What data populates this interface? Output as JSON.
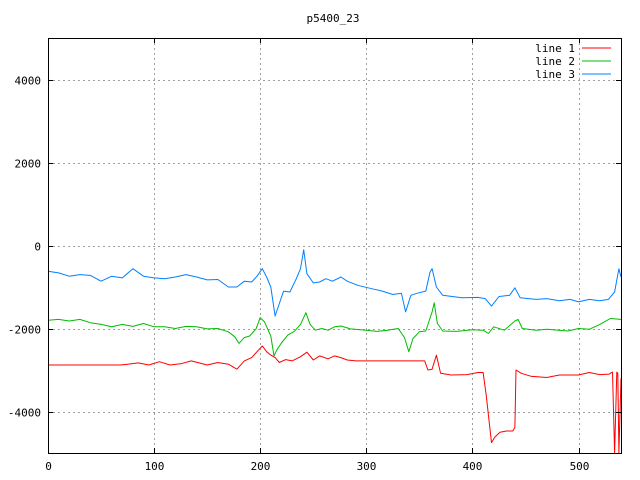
{
  "chart_data": {
    "type": "line",
    "title": "p5400_23",
    "xlabel": "",
    "ylabel": "",
    "xlim": [
      0,
      540
    ],
    "ylim": [
      -5000,
      5000
    ],
    "x_ticks": [
      0,
      100,
      200,
      300,
      400,
      500
    ],
    "y_ticks": [
      -4000,
      -2000,
      0,
      2000,
      4000
    ],
    "grid": true,
    "legend_position": "top-right",
    "series": [
      {
        "name": "line 1",
        "color": "#ff0000",
        "points": [
          [
            0,
            -2880
          ],
          [
            68,
            -2880
          ],
          [
            75,
            -2860
          ],
          [
            85,
            -2830
          ],
          [
            95,
            -2880
          ],
          [
            105,
            -2800
          ],
          [
            115,
            -2880
          ],
          [
            125,
            -2850
          ],
          [
            135,
            -2780
          ],
          [
            150,
            -2880
          ],
          [
            160,
            -2820
          ],
          [
            170,
            -2860
          ],
          [
            178,
            -2980
          ],
          [
            185,
            -2780
          ],
          [
            192,
            -2700
          ],
          [
            197,
            -2560
          ],
          [
            202,
            -2420
          ],
          [
            206,
            -2560
          ],
          [
            210,
            -2640
          ],
          [
            214,
            -2700
          ],
          [
            218,
            -2820
          ],
          [
            224,
            -2750
          ],
          [
            230,
            -2780
          ],
          [
            238,
            -2680
          ],
          [
            244,
            -2570
          ],
          [
            250,
            -2760
          ],
          [
            256,
            -2660
          ],
          [
            264,
            -2730
          ],
          [
            270,
            -2660
          ],
          [
            276,
            -2700
          ],
          [
            282,
            -2760
          ],
          [
            290,
            -2780
          ],
          [
            330,
            -2780
          ],
          [
            355,
            -2780
          ],
          [
            358,
            -3000
          ],
          [
            362,
            -2980
          ],
          [
            366,
            -2640
          ],
          [
            370,
            -3080
          ],
          [
            380,
            -3120
          ],
          [
            395,
            -3110
          ],
          [
            405,
            -3060
          ],
          [
            410,
            -3060
          ],
          [
            413,
            -3600
          ],
          [
            416,
            -4300
          ],
          [
            418,
            -4750
          ],
          [
            421,
            -4620
          ],
          [
            426,
            -4500
          ],
          [
            432,
            -4470
          ],
          [
            438,
            -4470
          ],
          [
            440,
            -4380
          ],
          [
            441,
            -3000
          ],
          [
            446,
            -3080
          ],
          [
            455,
            -3150
          ],
          [
            470,
            -3180
          ],
          [
            482,
            -3120
          ],
          [
            500,
            -3120
          ],
          [
            510,
            -3060
          ],
          [
            520,
            -3110
          ],
          [
            529,
            -3100
          ],
          [
            532,
            -3050
          ],
          [
            534,
            -5000
          ],
          [
            536,
            -3050
          ],
          [
            537,
            -3080
          ],
          [
            538,
            -5000
          ],
          [
            540,
            -3200
          ]
        ]
      },
      {
        "name": "line 2",
        "color": "#00bb00",
        "points": [
          [
            0,
            -1800
          ],
          [
            10,
            -1780
          ],
          [
            20,
            -1820
          ],
          [
            30,
            -1780
          ],
          [
            40,
            -1860
          ],
          [
            50,
            -1900
          ],
          [
            60,
            -1960
          ],
          [
            70,
            -1900
          ],
          [
            80,
            -1950
          ],
          [
            90,
            -1880
          ],
          [
            100,
            -1960
          ],
          [
            110,
            -1960
          ],
          [
            120,
            -2000
          ],
          [
            130,
            -1950
          ],
          [
            140,
            -1960
          ],
          [
            150,
            -2010
          ],
          [
            160,
            -2000
          ],
          [
            170,
            -2080
          ],
          [
            176,
            -2200
          ],
          [
            180,
            -2360
          ],
          [
            185,
            -2220
          ],
          [
            190,
            -2180
          ],
          [
            196,
            -2010
          ],
          [
            200,
            -1740
          ],
          [
            204,
            -1840
          ],
          [
            210,
            -2180
          ],
          [
            213,
            -2660
          ],
          [
            216,
            -2500
          ],
          [
            220,
            -2350
          ],
          [
            226,
            -2160
          ],
          [
            232,
            -2070
          ],
          [
            238,
            -1900
          ],
          [
            243,
            -1620
          ],
          [
            247,
            -1900
          ],
          [
            252,
            -2040
          ],
          [
            258,
            -2000
          ],
          [
            264,
            -2040
          ],
          [
            270,
            -1960
          ],
          [
            276,
            -1940
          ],
          [
            285,
            -2010
          ],
          [
            300,
            -2040
          ],
          [
            310,
            -2070
          ],
          [
            320,
            -2040
          ],
          [
            330,
            -2000
          ],
          [
            336,
            -2220
          ],
          [
            340,
            -2560
          ],
          [
            344,
            -2240
          ],
          [
            350,
            -2080
          ],
          [
            356,
            -2060
          ],
          [
            362,
            -1600
          ],
          [
            364,
            -1380
          ],
          [
            367,
            -1880
          ],
          [
            372,
            -2060
          ],
          [
            385,
            -2070
          ],
          [
            400,
            -2030
          ],
          [
            410,
            -2040
          ],
          [
            415,
            -2120
          ],
          [
            420,
            -1960
          ],
          [
            430,
            -2040
          ],
          [
            440,
            -1820
          ],
          [
            443,
            -1780
          ],
          [
            447,
            -2000
          ],
          [
            460,
            -2040
          ],
          [
            470,
            -2020
          ],
          [
            490,
            -2060
          ],
          [
            500,
            -2000
          ],
          [
            510,
            -2020
          ],
          [
            520,
            -1900
          ],
          [
            530,
            -1760
          ],
          [
            540,
            -1780
          ]
        ]
      },
      {
        "name": "line 3",
        "color": "#0080ff",
        "points": [
          [
            0,
            -620
          ],
          [
            10,
            -660
          ],
          [
            20,
            -740
          ],
          [
            30,
            -700
          ],
          [
            40,
            -720
          ],
          [
            50,
            -860
          ],
          [
            60,
            -740
          ],
          [
            70,
            -780
          ],
          [
            80,
            -560
          ],
          [
            90,
            -740
          ],
          [
            100,
            -780
          ],
          [
            110,
            -800
          ],
          [
            120,
            -760
          ],
          [
            130,
            -700
          ],
          [
            140,
            -760
          ],
          [
            150,
            -830
          ],
          [
            160,
            -820
          ],
          [
            170,
            -1000
          ],
          [
            178,
            -1000
          ],
          [
            185,
            -860
          ],
          [
            192,
            -880
          ],
          [
            197,
            -740
          ],
          [
            202,
            -560
          ],
          [
            206,
            -760
          ],
          [
            210,
            -1000
          ],
          [
            214,
            -1700
          ],
          [
            218,
            -1400
          ],
          [
            222,
            -1100
          ],
          [
            228,
            -1120
          ],
          [
            234,
            -800
          ],
          [
            238,
            -560
          ],
          [
            241,
            -100
          ],
          [
            244,
            -680
          ],
          [
            250,
            -900
          ],
          [
            256,
            -880
          ],
          [
            262,
            -800
          ],
          [
            268,
            -860
          ],
          [
            276,
            -760
          ],
          [
            282,
            -860
          ],
          [
            292,
            -960
          ],
          [
            305,
            -1040
          ],
          [
            315,
            -1100
          ],
          [
            325,
            -1180
          ],
          [
            333,
            -1150
          ],
          [
            337,
            -1600
          ],
          [
            342,
            -1200
          ],
          [
            348,
            -1150
          ],
          [
            356,
            -1100
          ],
          [
            360,
            -640
          ],
          [
            362,
            -560
          ],
          [
            366,
            -1000
          ],
          [
            372,
            -1200
          ],
          [
            390,
            -1260
          ],
          [
            405,
            -1250
          ],
          [
            412,
            -1280
          ],
          [
            418,
            -1460
          ],
          [
            425,
            -1230
          ],
          [
            435,
            -1200
          ],
          [
            440,
            -1020
          ],
          [
            445,
            -1260
          ],
          [
            460,
            -1300
          ],
          [
            470,
            -1280
          ],
          [
            482,
            -1330
          ],
          [
            492,
            -1300
          ],
          [
            500,
            -1360
          ],
          [
            510,
            -1300
          ],
          [
            520,
            -1330
          ],
          [
            528,
            -1300
          ],
          [
            534,
            -1120
          ],
          [
            538,
            -560
          ],
          [
            540,
            -760
          ]
        ]
      }
    ]
  }
}
